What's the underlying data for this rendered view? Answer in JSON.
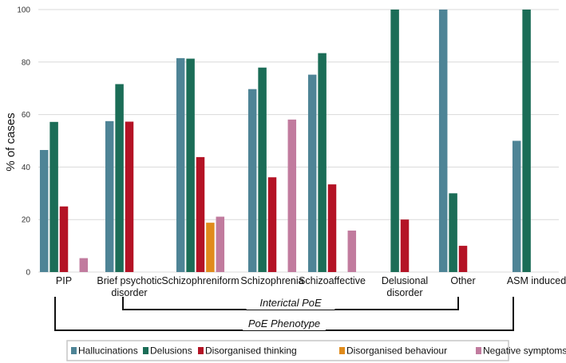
{
  "chart_data": {
    "type": "bar",
    "ylabel": "% of cases",
    "ylim": [
      0,
      100
    ],
    "yticks": [
      0,
      20,
      40,
      60,
      80,
      100
    ],
    "grid": true,
    "categories": [
      [
        "PIP"
      ],
      [
        "Brief psychotic",
        "disorder"
      ],
      [
        "Schizophreniform"
      ],
      [
        "Schizophrenia"
      ],
      [
        "Schizoaffective"
      ],
      [
        "Delusional",
        "disorder"
      ],
      [
        "Other"
      ],
      [
        "ASM induced"
      ]
    ],
    "series": [
      {
        "name": "Hallucinations",
        "color": "#4e8496",
        "values": [
          46.5,
          57.5,
          81.5,
          69.7,
          75.2,
          0,
          100,
          50
        ]
      },
      {
        "name": "Delusions",
        "color": "#1b6d57",
        "values": [
          57.2,
          71.6,
          81.3,
          77.9,
          83.4,
          100,
          30,
          100
        ]
      },
      {
        "name": "Disorganised thinking",
        "color": "#b41325",
        "values": [
          25,
          57.3,
          43.8,
          36.1,
          33.4,
          20,
          10,
          0
        ]
      },
      {
        "name": "Disorganised behaviour",
        "color": "#e08b1c",
        "values": [
          0,
          0,
          18.8,
          0,
          0,
          0,
          0,
          0
        ]
      },
      {
        "name": "Negative symptoms",
        "color": "#c17b9e",
        "values": [
          5.3,
          0,
          21.1,
          58.1,
          15.8,
          0,
          0,
          0
        ]
      }
    ],
    "brackets": [
      {
        "label": "Interictal PoE",
        "from_category": 1,
        "to_category": 6
      },
      {
        "label": "PoE Phenotype",
        "from_category": 0,
        "to_category": 7
      }
    ],
    "legend_position": "bottom"
  }
}
